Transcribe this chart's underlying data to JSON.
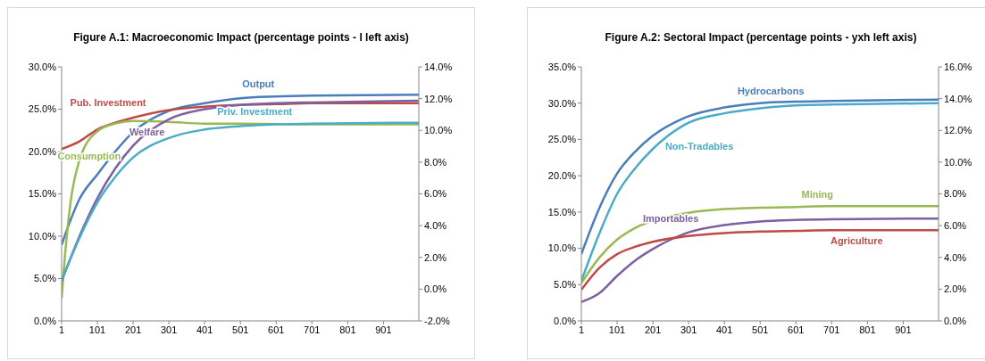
{
  "chart_data": [
    {
      "type": "line",
      "title": "Figure A.1: Macroeconomic Impact (percentage points - l left axis)",
      "x": [
        1,
        51,
        101,
        151,
        201,
        301,
        401,
        501,
        601,
        701,
        1000
      ],
      "xlim": [
        1,
        1000
      ],
      "xticks": [
        1,
        101,
        201,
        301,
        401,
        501,
        601,
        701,
        801,
        901
      ],
      "ylim": [
        0,
        30
      ],
      "yticks": [
        {
          "value": 0,
          "label": "0.0%"
        },
        {
          "value": 5,
          "label": "5.0%"
        },
        {
          "value": 10,
          "label": "10.0%"
        },
        {
          "value": 15,
          "label": "15.0%"
        },
        {
          "value": 20,
          "label": "20.0%"
        },
        {
          "value": 25,
          "label": "25.0%"
        },
        {
          "value": 30,
          "label": "30.0%"
        }
      ],
      "y2lim": [
        -2,
        14
      ],
      "y2ticks": [
        {
          "value": -2,
          "label": "-2.0%"
        },
        {
          "value": 0,
          "label": "0.0%"
        },
        {
          "value": 2,
          "label": "2.0%"
        },
        {
          "value": 4,
          "label": "4.0%"
        },
        {
          "value": 6,
          "label": "6.0%"
        },
        {
          "value": 8,
          "label": "8.0%"
        },
        {
          "value": 10,
          "label": "10.0%"
        },
        {
          "value": 12,
          "label": "12.0%"
        },
        {
          "value": 14,
          "label": "14.0%"
        }
      ],
      "series": [
        {
          "name": "Output",
          "color": "#4a7ebb",
          "values": [
            9.0,
            14.4,
            17.3,
            20.0,
            22.3,
            24.8,
            25.7,
            26.3,
            26.5,
            26.6,
            26.7
          ]
        },
        {
          "name": "Pub. Investment",
          "color": "#be4b48",
          "values": [
            20.3,
            21.2,
            22.6,
            23.4,
            24.0,
            24.9,
            25.3,
            25.5,
            25.6,
            25.7,
            25.7
          ]
        },
        {
          "name": "Consumption",
          "color": "#98b954",
          "x": [
            1,
            11,
            26,
            51,
            101,
            151,
            201,
            301,
            401,
            501,
            701,
            1000
          ],
          "values": [
            2.7,
            8,
            14,
            19,
            22.4,
            23.3,
            23.6,
            23.5,
            23.3,
            23.3,
            23.2,
            23.2
          ]
        },
        {
          "name": "Welfare",
          "color": "#7d60a0",
          "values": [
            4.7,
            10,
            14.5,
            18,
            20.7,
            23.8,
            25.0,
            25.5,
            25.7,
            25.8,
            26.0
          ]
        },
        {
          "name": "Priv. Investment",
          "color": "#4bacc6",
          "values": [
            4.8,
            9.8,
            14,
            17,
            19.3,
            21.6,
            22.6,
            23.0,
            23.2,
            23.3,
            23.4
          ]
        }
      ]
    },
    {
      "type": "line",
      "title": "Figure A.2: Sectoral Impact (percentage points - yxh left axis)",
      "x": [
        1,
        51,
        101,
        151,
        201,
        301,
        401,
        501,
        601,
        701,
        1000
      ],
      "xlim": [
        1,
        1000
      ],
      "xticks": [
        1,
        101,
        201,
        301,
        401,
        501,
        601,
        701,
        801,
        901
      ],
      "ylim": [
        0,
        35
      ],
      "yticks": [
        {
          "value": 0,
          "label": "0.0%"
        },
        {
          "value": 5,
          "label": "5.0%"
        },
        {
          "value": 10,
          "label": "10.0%"
        },
        {
          "value": 15,
          "label": "15.0%"
        },
        {
          "value": 20,
          "label": "20.0%"
        },
        {
          "value": 25,
          "label": "25.0%"
        },
        {
          "value": 30,
          "label": "30.0%"
        },
        {
          "value": 35,
          "label": "35.0%"
        }
      ],
      "y2lim": [
        0,
        16
      ],
      "y2ticks": [
        {
          "value": 0,
          "label": "0.0%"
        },
        {
          "value": 2,
          "label": "2.0%"
        },
        {
          "value": 4,
          "label": "4.0%"
        },
        {
          "value": 6,
          "label": "6.0%"
        },
        {
          "value": 8,
          "label": "8.0%"
        },
        {
          "value": 10,
          "label": "10.0%"
        },
        {
          "value": 12,
          "label": "12.0%"
        },
        {
          "value": 14,
          "label": "14.0%"
        },
        {
          "value": 16,
          "label": "16.0%"
        }
      ],
      "series": [
        {
          "name": "Hydrocarbons",
          "color": "#4a7ebb",
          "values": [
            9.2,
            15.5,
            20.3,
            23.3,
            25.5,
            28.2,
            29.4,
            30.0,
            30.2,
            30.3,
            30.5
          ]
        },
        {
          "name": "Non-Tradables",
          "color": "#4bacc6",
          "values": [
            5.5,
            12,
            17.5,
            21,
            23.7,
            27.3,
            28.6,
            29.3,
            29.7,
            29.8,
            30.0
          ]
        },
        {
          "name": "Mining",
          "color": "#98b954",
          "values": [
            5.2,
            8.7,
            11.2,
            12.8,
            13.8,
            14.9,
            15.4,
            15.6,
            15.7,
            15.8,
            15.8
          ]
        },
        {
          "name": "Importables",
          "color": "#7d60a0",
          "values": [
            2.6,
            3.8,
            6.2,
            8.3,
            9.9,
            12.2,
            13.2,
            13.7,
            13.9,
            14.0,
            14.1
          ]
        },
        {
          "name": "Agriculture",
          "color": "#be4b48",
          "values": [
            4.3,
            7.3,
            9.2,
            10.2,
            10.9,
            11.7,
            12.1,
            12.3,
            12.4,
            12.5,
            12.5
          ]
        }
      ]
    }
  ]
}
